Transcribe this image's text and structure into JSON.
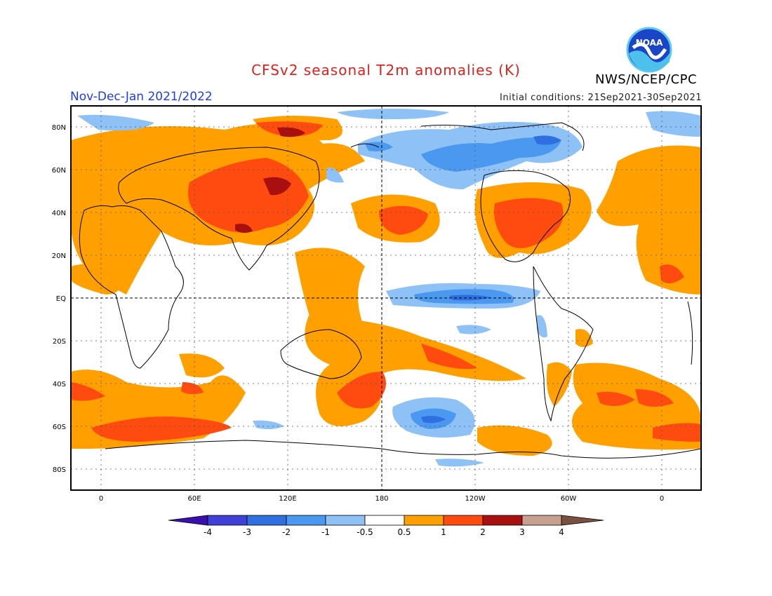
{
  "title": "CFSv2 seasonal T2m anomalies (K)",
  "season": "Nov-Dec-Jan 2021/2022",
  "initial_conditions": "Initial conditions: 21Sep2021-30Sep2021",
  "agency": "NWS/NCEP/CPC",
  "logo_text": "NOAA",
  "map": {
    "lat_labels": [
      "80N",
      "60N",
      "40N",
      "20N",
      "EQ",
      "20S",
      "40S",
      "60S",
      "80S"
    ],
    "lon_labels": [
      "0",
      "60E",
      "120E",
      "180",
      "120W",
      "60W",
      "0"
    ]
  },
  "colorbar": {
    "labels": [
      "-4",
      "-3",
      "-2",
      "-1",
      "-0.5",
      "0.5",
      "1",
      "2",
      "3",
      "4"
    ],
    "colors": [
      "#3a0fb0",
      "#4040d8",
      "#2f6fe0",
      "#4a98f0",
      "#8ec2f6",
      "#ffffff",
      "#ffa000",
      "#ff4a10",
      "#a81010",
      "#c8a090",
      "#7a5040"
    ]
  },
  "palette": {
    "orange": "#ffa000",
    "red": "#ff4a10",
    "darkred": "#a81010",
    "lightblue": "#8ec2f6",
    "blue": "#4a98f0",
    "darkblue": "#2f6fe0"
  }
}
